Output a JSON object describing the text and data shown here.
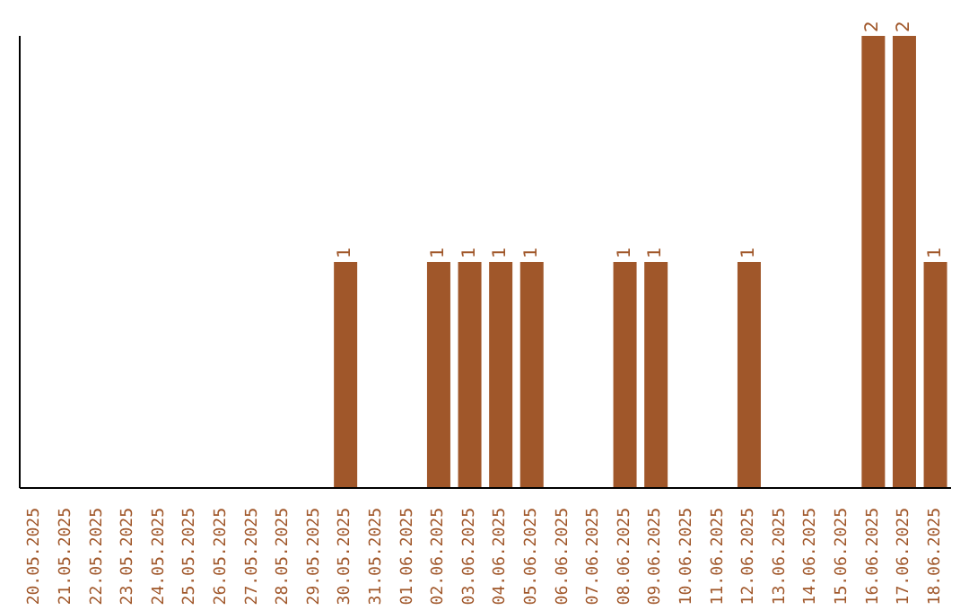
{
  "chart_data": {
    "type": "bar",
    "categories": [
      "20.05.2025",
      "21.05.2025",
      "22.05.2025",
      "23.05.2025",
      "24.05.2025",
      "25.05.2025",
      "26.05.2025",
      "27.05.2025",
      "28.05.2025",
      "29.05.2025",
      "30.05.2025",
      "31.05.2025",
      "01.06.2025",
      "02.06.2025",
      "03.06.2025",
      "04.06.2025",
      "05.06.2025",
      "06.06.2025",
      "07.06.2025",
      "08.06.2025",
      "09.06.2025",
      "10.06.2025",
      "11.06.2025",
      "12.06.2025",
      "13.06.2025",
      "14.06.2025",
      "15.06.2025",
      "16.06.2025",
      "17.06.2025",
      "18.06.2025"
    ],
    "values": [
      0,
      0,
      0,
      0,
      0,
      0,
      0,
      0,
      0,
      0,
      1,
      0,
      0,
      1,
      1,
      1,
      1,
      0,
      0,
      1,
      1,
      0,
      0,
      1,
      0,
      0,
      0,
      2,
      2,
      1
    ],
    "value_labels": [
      null,
      null,
      null,
      null,
      null,
      null,
      null,
      null,
      null,
      null,
      "1",
      null,
      null,
      "1",
      "1",
      "1",
      "1",
      null,
      null,
      "1",
      "1",
      null,
      null,
      "1",
      null,
      null,
      null,
      "2",
      "2",
      "1"
    ],
    "color": "#a0572a",
    "grid": false,
    "legend": false
  }
}
